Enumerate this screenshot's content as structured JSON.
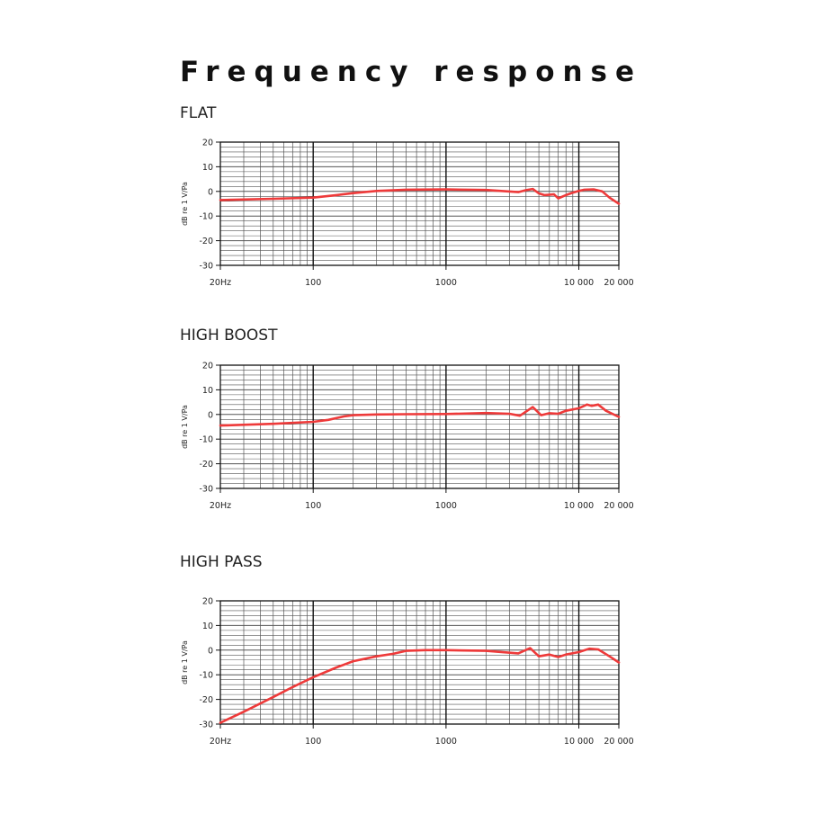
{
  "title": "Frequency response",
  "styles": {
    "curve_color": "#ee3a3a",
    "grid_color": "#555555",
    "frame_color": "#111111"
  },
  "chart_data": [
    {
      "type": "line",
      "title": "FLAT",
      "ylabel": "dB re 1 V/Pa",
      "xscale": "log",
      "xlim": [
        20,
        20000
      ],
      "ylim": [
        -30,
        20
      ],
      "grid": true,
      "x_tick_labels": [
        {
          "value": 20,
          "label": "20Hz"
        },
        {
          "value": 100,
          "label": "100"
        },
        {
          "value": 1000,
          "label": "1000"
        },
        {
          "value": 10000,
          "label": "10 000"
        },
        {
          "value": 20000,
          "label": "20 000"
        }
      ],
      "y_ticks": [
        20,
        10,
        0,
        -10,
        -20,
        -30
      ],
      "series": [
        {
          "x": [
            20,
            50,
            100,
            150,
            200,
            300,
            500,
            1000,
            2000,
            3500,
            4000,
            4500,
            5000,
            5500,
            6500,
            7000,
            8000,
            9000,
            10000,
            11000,
            13000,
            15000,
            17000,
            20000
          ],
          "y": [
            -3.5,
            -3,
            -2.5,
            -1.5,
            -0.7,
            0.2,
            0.7,
            0.8,
            0.6,
            -0.3,
            0.5,
            1,
            -0.8,
            -1.5,
            -1.2,
            -2.8,
            -1.5,
            -0.5,
            0.2,
            0.7,
            0.8,
            0,
            -2.5,
            -5
          ]
        }
      ]
    },
    {
      "type": "line",
      "title": "HIGH BOOST",
      "ylabel": "dB re 1 V/Pa",
      "xscale": "log",
      "xlim": [
        20,
        20000
      ],
      "ylim": [
        -30,
        20
      ],
      "grid": true,
      "x_tick_labels": [
        {
          "value": 20,
          "label": "20Hz"
        },
        {
          "value": 100,
          "label": "100"
        },
        {
          "value": 1000,
          "label": "1000"
        },
        {
          "value": 10000,
          "label": "10 000"
        },
        {
          "value": 20000,
          "label": "20 000"
        }
      ],
      "y_ticks": [
        20,
        10,
        0,
        -10,
        -20,
        -30
      ],
      "series": [
        {
          "x": [
            20,
            50,
            100,
            130,
            170,
            200,
            300,
            500,
            1000,
            2000,
            3000,
            3600,
            4500,
            5200,
            6000,
            7000,
            8000,
            10000,
            11500,
            12500,
            14000,
            16000,
            20000
          ],
          "y": [
            -4.5,
            -3.8,
            -3,
            -2.2,
            -0.8,
            -0.3,
            0,
            0.1,
            0.2,
            0.6,
            0.3,
            -0.5,
            3,
            -0.3,
            0.5,
            0.3,
            1.5,
            2.5,
            4,
            3.5,
            4,
            1.5,
            -1
          ]
        }
      ]
    },
    {
      "type": "line",
      "title": "HIGH PASS",
      "ylabel": "dB re 1 V/Pa",
      "xscale": "log",
      "xlim": [
        20,
        20000
      ],
      "ylim": [
        -30,
        20
      ],
      "grid": true,
      "x_tick_labels": [
        {
          "value": 20,
          "label": "20Hz"
        },
        {
          "value": 100,
          "label": "100"
        },
        {
          "value": 1000,
          "label": "1000"
        },
        {
          "value": 10000,
          "label": "10 000"
        },
        {
          "value": 20000,
          "label": "20 000"
        }
      ],
      "y_ticks": [
        20,
        10,
        0,
        -10,
        -20,
        -30
      ],
      "series": [
        {
          "x": [
            20,
            30,
            50,
            70,
            100,
            150,
            200,
            300,
            400,
            500,
            700,
            1000,
            2000,
            3500,
            4300,
            5000,
            6000,
            7000,
            8000,
            10000,
            12000,
            14000,
            17000,
            20000
          ],
          "y": [
            -29.5,
            -25,
            -19,
            -15,
            -11,
            -7,
            -4.5,
            -2.5,
            -1.5,
            -0.3,
            0,
            0,
            -0.3,
            -1.3,
            0.8,
            -2.5,
            -1.8,
            -2.8,
            -1.8,
            -0.8,
            0.6,
            0.3,
            -2.5,
            -5
          ]
        }
      ]
    }
  ]
}
